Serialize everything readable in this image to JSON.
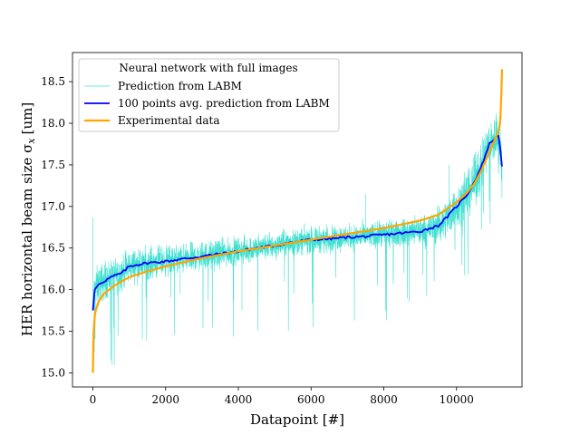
{
  "chart_data": {
    "type": "line",
    "title": "",
    "xlabel": "Datapoint [#]",
    "ylabel": "HER horizontal beam size σ",
    "ylabel_subscript": "x",
    "ylabel_unit": "[um]",
    "xlim": [
      -560,
      11800
    ],
    "ylim": [
      14.83,
      18.85
    ],
    "x_ticks": [
      0,
      2000,
      4000,
      6000,
      8000,
      10000
    ],
    "x_tick_labels": [
      "0",
      "2000",
      "4000",
      "6000",
      "8000",
      "10000"
    ],
    "y_ticks": [
      15.0,
      15.5,
      16.0,
      16.5,
      17.0,
      17.5,
      18.0,
      18.5
    ],
    "y_tick_labels": [
      "15.0",
      "15.5",
      "16.0",
      "16.5",
      "17.0",
      "17.5",
      "18.0",
      "18.5"
    ],
    "grid": false,
    "legend": {
      "placement": "top-left",
      "title": "Neural network with full images",
      "entries": [
        "Prediction from LABM",
        "100 points avg. prediction from LABM",
        "Experimental data"
      ]
    },
    "series": [
      {
        "name": "Prediction from LABM",
        "color": "#40e0d0",
        "style": "noisy",
        "n_points": 11250,
        "description": "per-datapoint prediction, dense noise band around the averaged curve",
        "noise_band_half_width": [
          [
            0,
            0.35
          ],
          [
            1000,
            0.28
          ],
          [
            3000,
            0.24
          ],
          [
            6000,
            0.22
          ],
          [
            8500,
            0.22
          ],
          [
            9500,
            0.3
          ],
          [
            10500,
            0.42
          ],
          [
            11200,
            0.45
          ]
        ],
        "outlier_points": [
          [
            5,
            16.87
          ],
          [
            40,
            15.25
          ],
          [
            520,
            15.1
          ],
          [
            2400,
            15.95
          ],
          [
            4100,
            15.75
          ],
          [
            7500,
            17.15
          ],
          [
            8700,
            15.85
          ],
          [
            9800,
            17.5
          ],
          [
            11000,
            17.85
          ],
          [
            11250,
            17.1
          ]
        ]
      },
      {
        "name": "100 points avg. prediction from LABM",
        "color": "#0000ff",
        "x": [
          0,
          50,
          150,
          300,
          500,
          800,
          1000,
          1200,
          1500,
          2000,
          2500,
          3000,
          3500,
          4000,
          4500,
          5000,
          5500,
          6000,
          6500,
          7000,
          7500,
          8000,
          8500,
          9000,
          9500,
          9800,
          10000,
          10300,
          10500,
          10700,
          10900,
          11050,
          11150,
          11200,
          11250
        ],
        "y": [
          15.75,
          16.0,
          16.06,
          16.1,
          16.15,
          16.2,
          16.28,
          16.3,
          16.32,
          16.34,
          16.37,
          16.4,
          16.43,
          16.46,
          16.5,
          16.53,
          16.57,
          16.6,
          16.61,
          16.63,
          16.64,
          16.66,
          16.68,
          16.7,
          16.77,
          16.9,
          17.0,
          17.15,
          17.3,
          17.5,
          17.75,
          17.82,
          17.85,
          17.7,
          17.48
        ]
      },
      {
        "name": "Experimental data",
        "color": "#ffa500",
        "x": [
          0,
          20,
          60,
          150,
          300,
          600,
          1000,
          1500,
          2000,
          3000,
          4000,
          5000,
          6000,
          7000,
          8000,
          9000,
          9500,
          10000,
          10300,
          10500,
          10700,
          10900,
          11050,
          11150,
          11200,
          11230,
          11250
        ],
        "y": [
          15.0,
          15.5,
          15.72,
          15.85,
          15.95,
          16.05,
          16.15,
          16.22,
          16.28,
          16.38,
          16.46,
          16.53,
          16.6,
          16.67,
          16.74,
          16.83,
          16.9,
          17.05,
          17.17,
          17.28,
          17.45,
          17.65,
          17.8,
          17.9,
          18.0,
          18.3,
          18.65
        ]
      }
    ]
  }
}
